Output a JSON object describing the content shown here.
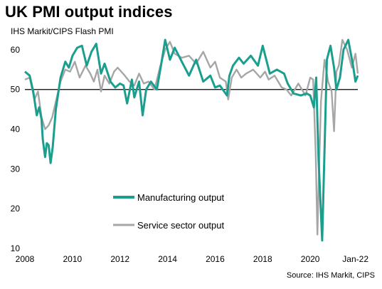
{
  "colors": {
    "manufacturing": "#1a9e8e",
    "services": "#a6a6a6",
    "reference": "#000000"
  },
  "chart_data": {
    "type": "line",
    "title": "UK PMI output indices",
    "subtitle": "IHS Markit/CIPS Flash PMI",
    "source": "Source: IHS Markit, CIPS",
    "ylim": [
      10,
      65
    ],
    "yticks": [
      10,
      20,
      30,
      40,
      50,
      60
    ],
    "xticks": [
      {
        "x": 2008,
        "label": "2008"
      },
      {
        "x": 2010,
        "label": "2010"
      },
      {
        "x": 2012,
        "label": "2012"
      },
      {
        "x": 2014,
        "label": "2014"
      },
      {
        "x": 2016,
        "label": "2016"
      },
      {
        "x": 2018,
        "label": "2018"
      },
      {
        "x": 2020,
        "label": "2020"
      },
      {
        "x": 2022,
        "label": "Jan-22"
      }
    ],
    "xlim": [
      2008,
      2022
    ],
    "reference_line": 50,
    "legend_position": "lower-middle",
    "series": [
      {
        "name": "Manufacturing output",
        "x": [
          2008.0,
          2008.2,
          2008.35,
          2008.5,
          2008.6,
          2008.7,
          2008.75,
          2008.85,
          2008.92,
          2009.0,
          2009.08,
          2009.17,
          2009.3,
          2009.5,
          2009.7,
          2009.85,
          2010.0,
          2010.2,
          2010.4,
          2010.6,
          2010.8,
          2011.0,
          2011.2,
          2011.35,
          2011.6,
          2011.8,
          2012.0,
          2012.15,
          2012.3,
          2012.5,
          2012.6,
          2012.8,
          2012.95,
          2013.1,
          2013.3,
          2013.55,
          2013.75,
          2013.9,
          2014.1,
          2014.3,
          2014.6,
          2014.9,
          2015.2,
          2015.5,
          2015.8,
          2016.0,
          2016.2,
          2016.5,
          2016.6,
          2016.75,
          2017.0,
          2017.2,
          2017.5,
          2017.8,
          2018.0,
          2018.3,
          2018.6,
          2018.9,
          2019.05,
          2019.3,
          2019.6,
          2019.85,
          2020.0,
          2020.15,
          2020.25,
          2020.35,
          2020.5,
          2020.7,
          2020.85,
          2021.0,
          2021.1,
          2021.25,
          2021.4,
          2021.6,
          2021.8,
          2021.9,
          2022.0
        ],
        "y": [
          54.5,
          53.5,
          49.5,
          43.5,
          45.5,
          42.5,
          37.5,
          33,
          36.5,
          36,
          31.5,
          35.5,
          45,
          53,
          57,
          55.5,
          58.5,
          60.5,
          61,
          56,
          59.5,
          61.5,
          54,
          56.5,
          52,
          50.5,
          51.5,
          51,
          46.5,
          52.5,
          48,
          52,
          43.5,
          50,
          52,
          50,
          57,
          62.5,
          57.5,
          60.5,
          57,
          53.5,
          57.5,
          52,
          53.5,
          50.5,
          51,
          48.5,
          53.5,
          56,
          58,
          56.5,
          58.5,
          56,
          61,
          54,
          55,
          54,
          51.5,
          49,
          48.5,
          49,
          48.5,
          45.5,
          53,
          32.5,
          12,
          57.5,
          61,
          55.5,
          50,
          53,
          60,
          62.5,
          56,
          52,
          53.5
        ]
      },
      {
        "name": "Service sector output",
        "x": [
          2008.0,
          2008.2,
          2008.4,
          2008.55,
          2008.7,
          2008.85,
          2009.0,
          2009.15,
          2009.3,
          2009.5,
          2009.7,
          2009.9,
          2010.1,
          2010.3,
          2010.55,
          2010.75,
          2010.9,
          2011.05,
          2011.2,
          2011.35,
          2011.55,
          2011.75,
          2011.9,
          2012.05,
          2012.2,
          2012.4,
          2012.6,
          2012.8,
          2013.0,
          2013.2,
          2013.45,
          2013.7,
          2013.9,
          2014.1,
          2014.3,
          2014.6,
          2014.9,
          2015.2,
          2015.5,
          2015.8,
          2016.0,
          2016.2,
          2016.45,
          2016.55,
          2016.7,
          2016.9,
          2017.1,
          2017.3,
          2017.6,
          2017.9,
          2018.1,
          2018.25,
          2018.5,
          2018.8,
          2019.0,
          2019.2,
          2019.5,
          2019.8,
          2020.0,
          2020.12,
          2020.23,
          2020.3,
          2020.35,
          2020.45,
          2020.6,
          2020.75,
          2020.9,
          2021.0,
          2021.1,
          2021.2,
          2021.35,
          2021.55,
          2021.75,
          2021.9,
          2022.0
        ],
        "y": [
          52.5,
          53,
          47.5,
          49.5,
          43,
          40,
          41,
          43,
          47,
          52,
          55,
          54.5,
          57,
          53,
          56,
          54,
          52,
          55,
          49.5,
          53.5,
          51.5,
          54.5,
          55.5,
          54.5,
          53.5,
          52,
          51,
          54,
          51.5,
          52,
          50,
          56,
          60,
          62,
          59,
          58,
          58.5,
          56.5,
          59.5,
          55.5,
          57,
          53,
          52,
          47.5,
          53,
          55,
          53,
          54,
          55,
          53,
          54.5,
          52.5,
          53.5,
          50.5,
          50,
          48.5,
          51.5,
          48.5,
          53,
          52.5,
          34,
          13.5,
          25,
          47,
          57.5,
          52,
          49.5,
          39.5,
          54.5,
          56,
          62.5,
          60,
          55.5,
          59,
          54
        ]
      }
    ]
  }
}
